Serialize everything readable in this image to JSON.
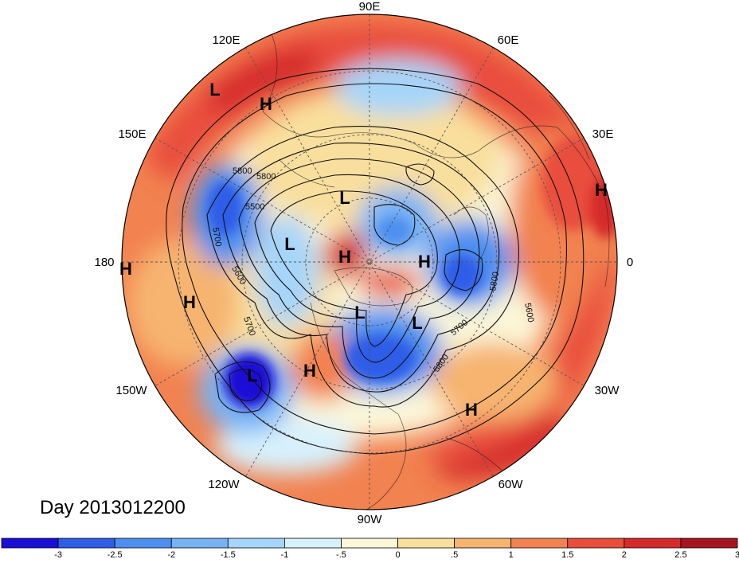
{
  "title": "Day 2013012200",
  "longitude_labels": {
    "lon_90E": "90E",
    "lon_60E": "60E",
    "lon_120E": "120E",
    "lon_30E": "30E",
    "lon_150E": "150E",
    "lon_0": "0",
    "lon_180": "180",
    "lon_30W": "30W",
    "lon_150W": "150W",
    "lon_60W": "60W",
    "lon_120W": "120W",
    "lon_90W": "90W"
  },
  "pressure_centers": [
    {
      "type": "L",
      "label": "L"
    },
    {
      "type": "H",
      "label": "H"
    },
    {
      "type": "H",
      "label": "H"
    },
    {
      "type": "L",
      "label": "L"
    },
    {
      "type": "H",
      "label": "H"
    },
    {
      "type": "L",
      "label": "L"
    },
    {
      "type": "H",
      "label": "H"
    },
    {
      "type": "H",
      "label": "H"
    },
    {
      "type": "H",
      "label": "H"
    },
    {
      "type": "L",
      "label": "L"
    },
    {
      "type": "L",
      "label": "L"
    },
    {
      "type": "L",
      "label": "L"
    },
    {
      "type": "H",
      "label": "H"
    },
    {
      "type": "H",
      "label": "H"
    }
  ],
  "contour_labels": [
    "5800",
    "5500",
    "5700",
    "5600",
    "5700",
    "5800",
    "5700",
    "5800",
    "5600",
    "5800"
  ],
  "colorbar": {
    "ticks": [
      "-3",
      "-2.5",
      "-2",
      "-1.5",
      "-1",
      "-.5",
      "0",
      ".5",
      "1",
      "1.5",
      "2",
      "2.5",
      "3"
    ],
    "colors": [
      "#1a0fd6",
      "#2f5de8",
      "#4d8ff0",
      "#77b2f5",
      "#a5d5fa",
      "#d7f1fc",
      "#fbf7d9",
      "#f9df9d",
      "#f6b46f",
      "#f28250",
      "#e94d3c",
      "#d42a2a",
      "#a5141f"
    ]
  }
}
